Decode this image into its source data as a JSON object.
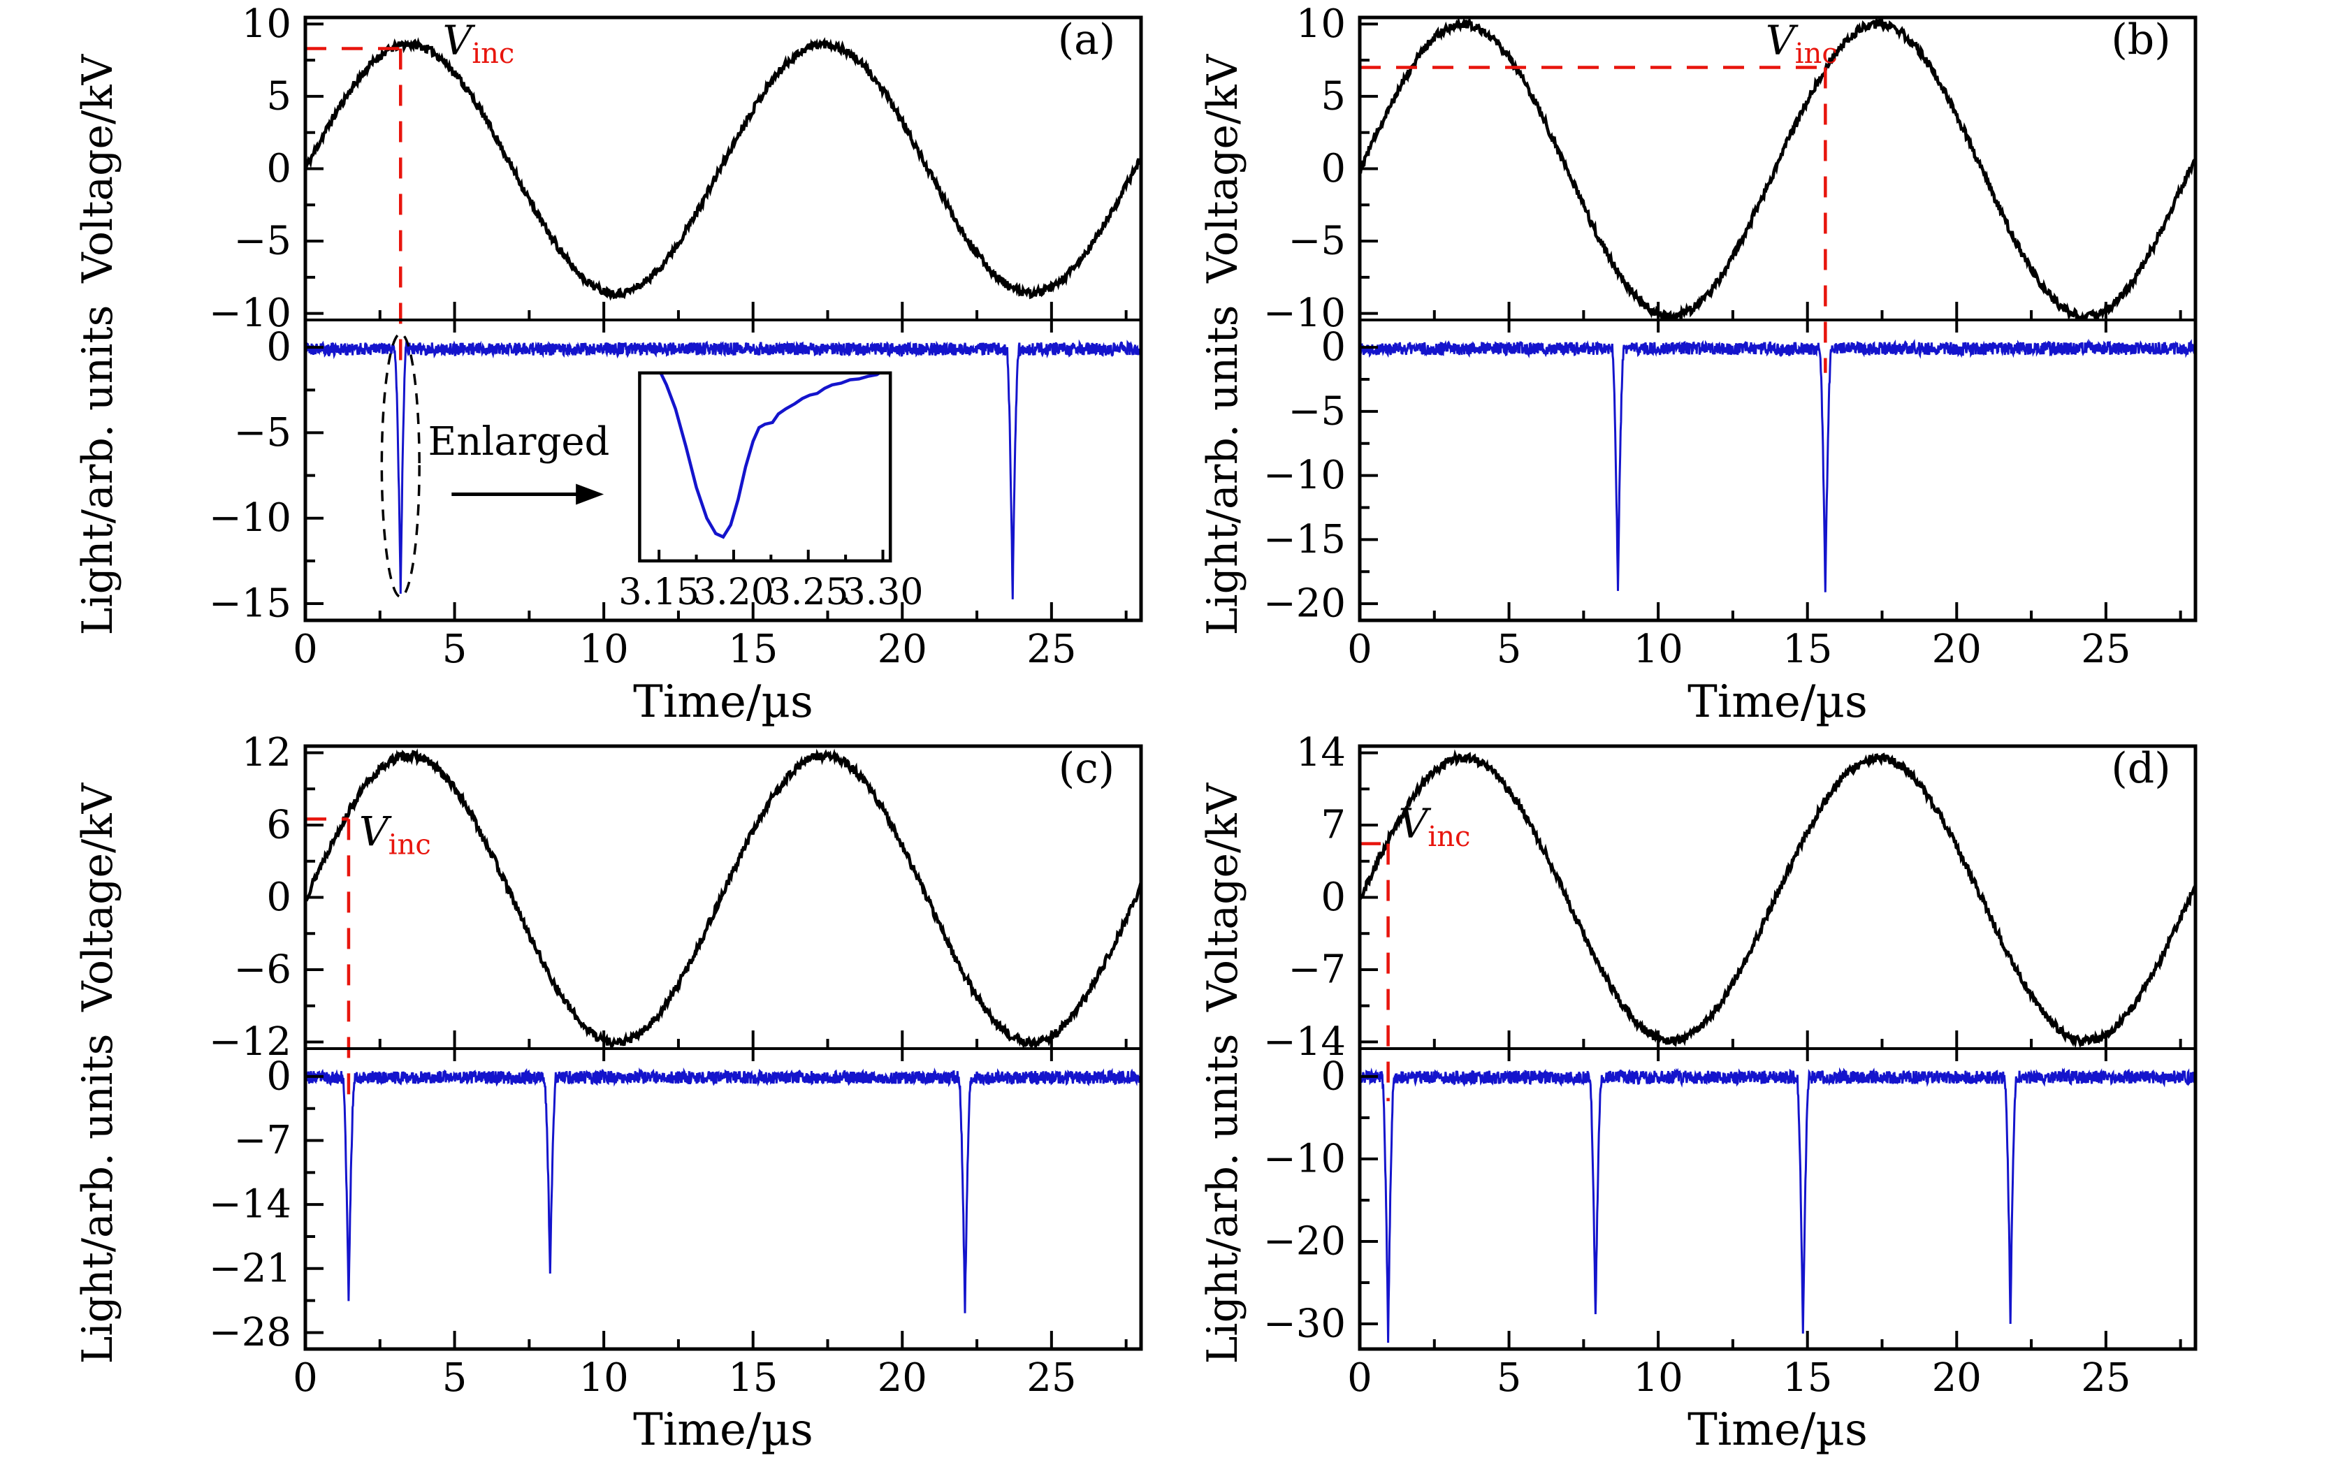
{
  "figure": {
    "xlabel": "Time/µs",
    "voltage_ylabel": "Voltage/kV",
    "light_ylabel": "Light/arb. units",
    "colors": {
      "voltage": "#000000",
      "light": "#1414cc",
      "marker": "#e8150d"
    },
    "x_range": [
      0,
      28
    ],
    "x_ticks": [
      0,
      5,
      10,
      15,
      20,
      25
    ]
  },
  "chart_data": {
    "type": "line",
    "x_axis": "Time/µs",
    "panels": [
      {
        "id": "a",
        "label": "(a)",
        "voltage": {
          "amplitude": 8.6,
          "period_us": 13.9,
          "offset": 0,
          "noise": 0.28,
          "ticks": [
            10,
            5,
            0,
            -5,
            -10
          ],
          "ylim": [
            -10.45,
            10.45
          ]
        },
        "light": {
          "noise": 0.38,
          "ticks": [
            0,
            -5,
            -10,
            -15
          ],
          "ylim": [
            -15.98,
            1.6
          ],
          "spikes": [
            {
              "t": 3.19,
              "depth": -14.3
            },
            {
              "t": 23.7,
              "depth": -14.6
            }
          ],
          "bump": {
            "t": 3.33,
            "h": 0.9,
            "w": 0.12
          }
        },
        "marker": {
          "label": "V",
          "sub": "inc",
          "v": 8.3,
          "t": 3.19,
          "label_t": 4.6,
          "label_v": 7.9,
          "light_end": -1.3
        },
        "annotations": {
          "ellipse": {
            "t": 3.19,
            "light": -6.9,
            "rt": 0.63,
            "rlight": 7.7
          },
          "enlarged_text": "Enlarged",
          "text_t": 7.15,
          "text_light": -6.3,
          "arrow": {
            "t1": 4.9,
            "t2": 10.0,
            "light": -8.6
          },
          "inset": {
            "t0": 11.2,
            "t1": 19.6,
            "light0": -1.5,
            "light1": -12.5,
            "x_range": [
              3.137,
              3.305
            ],
            "x_tick_labels": [
              "3.15",
              "3.20",
              "3.25",
              "3.30"
            ],
            "x_tick_vals": [
              3.15,
              3.2,
              3.25,
              3.3
            ],
            "curve": [
              [
                3.132,
                -0.2
              ],
              [
                3.136,
                -1.0
              ],
              [
                3.14,
                -0.7
              ],
              [
                3.145,
                -0.8
              ],
              [
                3.15,
                -1.3
              ],
              [
                3.155,
                -2.2
              ],
              [
                3.161,
                -3.6
              ],
              [
                3.168,
                -5.8
              ],
              [
                3.175,
                -8.2
              ],
              [
                3.182,
                -10.0
              ],
              [
                3.188,
                -10.9
              ],
              [
                3.193,
                -11.1
              ],
              [
                3.198,
                -10.4
              ],
              [
                3.203,
                -8.9
              ],
              [
                3.208,
                -7.0
              ],
              [
                3.213,
                -5.5
              ],
              [
                3.217,
                -4.7
              ],
              [
                3.221,
                -4.5
              ],
              [
                3.226,
                -4.4
              ],
              [
                3.23,
                -3.9
              ],
              [
                3.235,
                -3.6
              ],
              [
                3.241,
                -3.3
              ],
              [
                3.246,
                -3.0
              ],
              [
                3.251,
                -2.8
              ],
              [
                3.256,
                -2.7
              ],
              [
                3.261,
                -2.4
              ],
              [
                3.266,
                -2.2
              ],
              [
                3.272,
                -2.1
              ],
              [
                3.278,
                -1.9
              ],
              [
                3.284,
                -1.85
              ],
              [
                3.29,
                -1.7
              ],
              [
                3.296,
                -1.6
              ],
              [
                3.301,
                -1.3
              ],
              [
                3.305,
                -1.05
              ]
            ]
          }
        }
      },
      {
        "id": "b",
        "label": "(b)",
        "voltage": {
          "amplitude": 10.1,
          "period_us": 13.9,
          "offset": -0.1,
          "noise": 0.3,
          "ticks": [
            10,
            5,
            0,
            -5,
            -10
          ],
          "ylim": [
            -10.45,
            10.45
          ]
        },
        "light": {
          "noise": 0.5,
          "ticks": [
            0,
            -5,
            -10,
            -15,
            -20
          ],
          "ylim": [
            -21.3,
            2.13
          ],
          "spikes": [
            {
              "t": 8.65,
              "depth": -18.8
            },
            {
              "t": 15.6,
              "depth": -18.9
            }
          ]
        },
        "marker": {
          "label": "V",
          "sub": "inc",
          "v": 7.0,
          "t": 15.6,
          "label_t": 13.6,
          "label_v": 7.9,
          "light_end": -2.0
        }
      },
      {
        "id": "c",
        "label": "(c)",
        "voltage": {
          "amplitude": 11.9,
          "period_us": 13.9,
          "offset": -0.15,
          "noise": 0.35,
          "ticks": [
            12,
            6,
            0,
            -6,
            -12
          ],
          "ylim": [
            -12.55,
            12.55
          ]
        },
        "light": {
          "noise": 0.7,
          "ticks": [
            0,
            -7,
            -14,
            -21,
            -28
          ],
          "ylim": [
            -29.8,
            3.05
          ],
          "spikes": [
            {
              "t": 1.45,
              "depth": -24.6
            },
            {
              "t": 8.2,
              "depth": -21.3
            },
            {
              "t": 22.1,
              "depth": -25.9
            }
          ]
        },
        "marker": {
          "label": "V",
          "sub": "inc",
          "v": 6.5,
          "t": 1.45,
          "label_t": 1.8,
          "label_v": 4.3,
          "light_end": -2.8
        }
      },
      {
        "id": "d",
        "label": "(d)",
        "voltage": {
          "amplitude": 13.7,
          "period_us": 13.9,
          "offset": -0.2,
          "noise": 0.4,
          "ticks": [
            14,
            7,
            0,
            -7,
            -14
          ],
          "ylim": [
            -14.65,
            14.65
          ]
        },
        "light": {
          "noise": 0.8,
          "ticks": [
            0,
            -10,
            -20,
            -30
          ],
          "ylim": [
            -33.05,
            3.38
          ],
          "spikes": [
            {
              "t": 0.95,
              "depth": -32.0
            },
            {
              "t": 7.9,
              "depth": -29.4
            },
            {
              "t": 14.85,
              "depth": -31.3
            },
            {
              "t": 21.8,
              "depth": -29.2
            }
          ]
        },
        "marker": {
          "label": "V",
          "sub": "inc",
          "v": 5.2,
          "t": 0.95,
          "label_t": 1.3,
          "label_v": 5.8,
          "light_end": -3.0
        }
      }
    ]
  }
}
